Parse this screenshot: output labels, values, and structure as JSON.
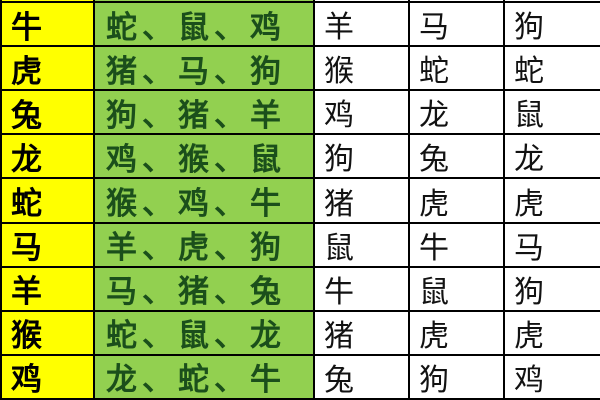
{
  "table": {
    "description_rows": [
      {
        "sign": "牛",
        "group": "蛇、鼠、鸡",
        "c3": "羊",
        "c4": "马",
        "c5": "狗"
      },
      {
        "sign": "虎",
        "group": "猪、马、狗",
        "c3": "猴",
        "c4": "蛇",
        "c5": "蛇"
      },
      {
        "sign": "兔",
        "group": "狗、猪、羊",
        "c3": "鸡",
        "c4": "龙",
        "c5": "鼠"
      },
      {
        "sign": "龙",
        "group": "鸡、猴、鼠",
        "c3": "狗",
        "c4": "兔",
        "c5": "龙"
      },
      {
        "sign": "蛇",
        "group": "猴、鸡、牛",
        "c3": "猪",
        "c4": "虎",
        "c5": "虎"
      },
      {
        "sign": "马",
        "group": "羊、虎、狗",
        "c3": "鼠",
        "c4": "牛",
        "c5": "马"
      },
      {
        "sign": "羊",
        "group": "马、猪、兔",
        "c3": "牛",
        "c4": "鼠",
        "c5": "狗"
      },
      {
        "sign": "猴",
        "group": "蛇、鼠、龙",
        "c3": "猪",
        "c4": "虎",
        "c5": "虎"
      },
      {
        "sign": "鸡",
        "group": "龙、蛇、牛",
        "c3": "兔",
        "c4": "狗",
        "c5": "鸡"
      }
    ]
  },
  "colors": {
    "sign_bg": "#ffff00",
    "group_bg": "#92d050",
    "cell_bg": "#ffffff",
    "border": "#000000",
    "sign_text": "#000000",
    "group_text": "#1b4f1b",
    "cell_text": "#121212"
  }
}
